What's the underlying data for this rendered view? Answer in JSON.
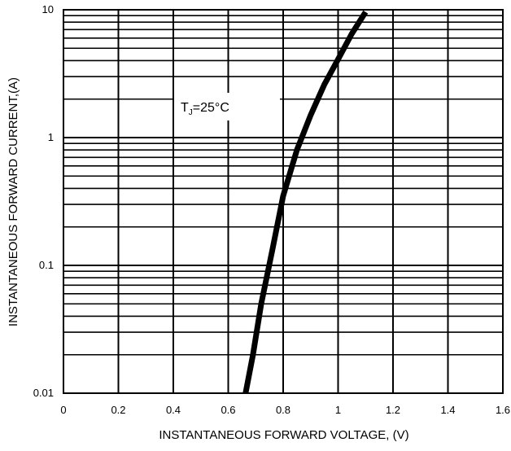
{
  "chart_data": {
    "type": "line",
    "title": "",
    "xlabel": "INSTANTANEOUS FORWARD VOLTAGE, (V)",
    "ylabel": "INSTANTANEOUS FORWARD CURRENT,(A)",
    "x_scale": "linear",
    "y_scale": "log",
    "xlim": [
      0,
      1.6
    ],
    "ylim": [
      0.01,
      10
    ],
    "x_ticks": [
      "0",
      "0.2",
      "0.4",
      "0.6",
      "0.8",
      "1",
      "1.2",
      "1.4",
      "1.6"
    ],
    "y_ticks": [
      "0.01",
      "0.1",
      "1",
      "10"
    ],
    "grid": true,
    "legend": "none",
    "annotation": {
      "prefix": "T",
      "subscript": "J",
      "suffix": "=25°C"
    },
    "series": [
      {
        "x": [
          0.663,
          0.69,
          0.72,
          0.76,
          0.8,
          0.85,
          0.9,
          0.95,
          1.0,
          1.05,
          1.1
        ],
        "y": [
          0.01,
          0.02,
          0.05,
          0.13,
          0.35,
          0.8,
          1.5,
          2.6,
          4.1,
          6.5,
          9.6
        ]
      }
    ],
    "colors": {
      "curve": "#000000",
      "grid": "#000000",
      "background": "#ffffff"
    }
  }
}
